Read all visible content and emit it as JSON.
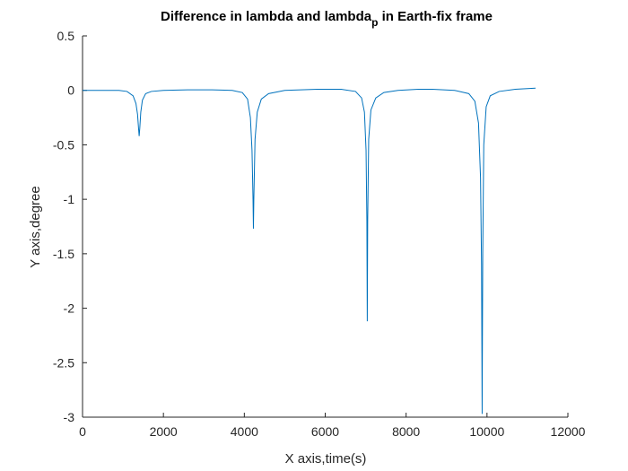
{
  "chart_data": {
    "type": "line",
    "title_main": "Difference in lambda and lambda",
    "title_sub": "p",
    "title_rest": " in Earth-fix frame",
    "xlabel": "X axis,time(s)",
    "ylabel": "Y axis,degree",
    "xlim": [
      0,
      12000
    ],
    "ylim": [
      -3,
      0.5
    ],
    "xticks": [
      0,
      2000,
      4000,
      6000,
      8000,
      10000,
      12000
    ],
    "xtick_labels": [
      "0",
      "2000",
      "4000",
      "6000",
      "8000",
      "10000",
      "12000"
    ],
    "yticks": [
      0.5,
      0,
      -0.5,
      -1,
      -1.5,
      -2,
      -2.5,
      -3
    ],
    "ytick_labels": [
      "0.5",
      "0",
      "-0.5",
      "-1",
      "-1.5",
      "-2",
      "-2.5",
      "-3"
    ],
    "grid": false,
    "line_color": "#0072BD",
    "series": [
      {
        "x": [
          0,
          500,
          900,
          1100,
          1250,
          1320,
          1360,
          1385,
          1400,
          1415,
          1440,
          1480,
          1560,
          1700,
          2000,
          2600,
          3200,
          3700,
          3950,
          4080,
          4150,
          4190,
          4215,
          4225,
          4235,
          4265,
          4320,
          4420,
          4600,
          5000,
          5800,
          6400,
          6750,
          6900,
          6970,
          7010,
          7030,
          7040,
          7050,
          7075,
          7130,
          7250,
          7450,
          7800,
          8300,
          8650,
          9200,
          9550,
          9700,
          9790,
          9840,
          9865,
          9880,
          9895,
          9920,
          9980,
          10080,
          10300,
          10700,
          11200
        ],
        "y": [
          0,
          0,
          0,
          -0.01,
          -0.05,
          -0.12,
          -0.22,
          -0.35,
          -0.42,
          -0.35,
          -0.2,
          -0.09,
          -0.03,
          -0.01,
          0,
          0.005,
          0.005,
          0,
          -0.02,
          -0.08,
          -0.25,
          -0.55,
          -1.0,
          -1.27,
          -1.0,
          -0.45,
          -0.2,
          -0.08,
          -0.03,
          0,
          0.01,
          0.01,
          -0.01,
          -0.07,
          -0.2,
          -0.55,
          -1.2,
          -2.12,
          -1.2,
          -0.45,
          -0.18,
          -0.07,
          -0.02,
          0,
          0.01,
          0.01,
          0,
          -0.03,
          -0.1,
          -0.3,
          -0.8,
          -1.6,
          -2.97,
          -1.5,
          -0.5,
          -0.15,
          -0.05,
          -0.01,
          0.01,
          0.02
        ]
      }
    ]
  }
}
